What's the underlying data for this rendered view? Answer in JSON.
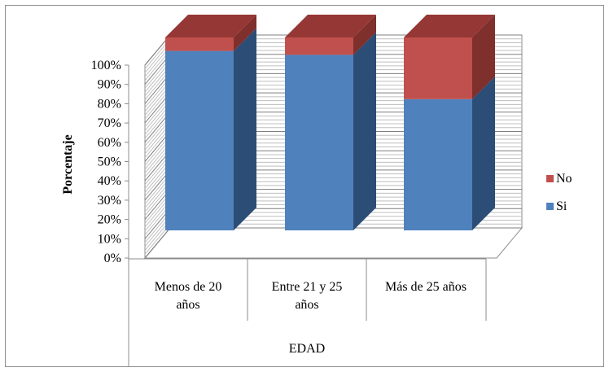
{
  "chart_data": {
    "type": "bar",
    "stacked": true,
    "percent_stacked": true,
    "three_d": true,
    "categories": [
      "Menos de   20 años",
      "Entre 21  y 25 años",
      "Más de  25 años"
    ],
    "category_lines": [
      [
        "Menos de   20",
        "años"
      ],
      [
        "Entre 21  y 25",
        "años"
      ],
      [
        "Más de  25 años"
      ]
    ],
    "series": [
      {
        "name": "Si",
        "values": [
          93,
          91,
          68
        ],
        "color": "#4F81BD",
        "side_color": "#2C4D75",
        "top_color": "#3A6496"
      },
      {
        "name": "No",
        "values": [
          7,
          9,
          32
        ],
        "color": "#C0504D",
        "side_color": "#7F2F2C",
        "top_color": "#953735"
      }
    ],
    "ylabel": "Porcentaje",
    "xlabel": "EDAD",
    "ylim": [
      0,
      100
    ],
    "yticks": [
      "0%",
      "10%",
      "20%",
      "30%",
      "40%",
      "50%",
      "60%",
      "70%",
      "80%",
      "90%",
      "100%"
    ],
    "grid": true,
    "legend_position": "right",
    "legend": [
      {
        "name": "No",
        "color": "#C0504D"
      },
      {
        "name": "Si",
        "color": "#4F81BD"
      }
    ]
  }
}
